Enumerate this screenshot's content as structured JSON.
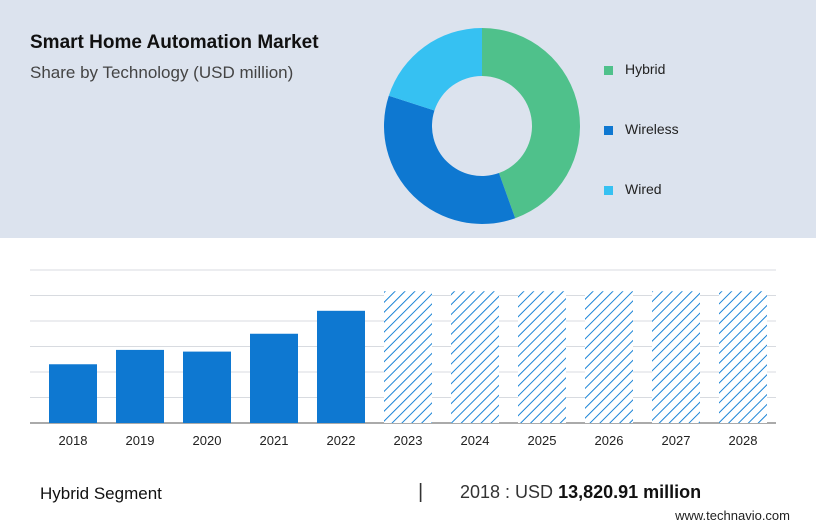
{
  "header": {
    "title": "Smart Home Automation Market",
    "subtitle": "Share by Technology (USD million)"
  },
  "colors": {
    "hybrid": "#4fc18b",
    "wireless": "#0e78d1",
    "wired": "#36c1f2",
    "bar": "#0e78d1",
    "hatch": "#1b84d6",
    "grid": "#d8dbe0",
    "axis": "#555555"
  },
  "chart_data": [
    {
      "type": "pie",
      "donut": true,
      "slices": [
        {
          "name": "Hybrid",
          "value": 44.5
        },
        {
          "name": "Wireless",
          "value": 35.5
        },
        {
          "name": "Wired",
          "value": 20.0
        }
      ],
      "legend_position": "right"
    },
    {
      "type": "bar",
      "categories": [
        "2018",
        "2019",
        "2020",
        "2021",
        "2022",
        "2023",
        "2024",
        "2025",
        "2026",
        "2027",
        "2028"
      ],
      "values": [
        13820.91,
        17200,
        16800,
        21000,
        26400,
        31000,
        31000,
        31000,
        31000,
        31000,
        31000
      ],
      "forecast": [
        false,
        false,
        false,
        false,
        false,
        true,
        true,
        true,
        true,
        true,
        true
      ],
      "ylim": [
        0,
        36000
      ],
      "grid": true
    }
  ],
  "footer": {
    "segment": "Hybrid Segment",
    "separator": "|",
    "year_label": "2018 : USD",
    "value": "13,820.91 million",
    "brand": "www.technavio.com"
  }
}
